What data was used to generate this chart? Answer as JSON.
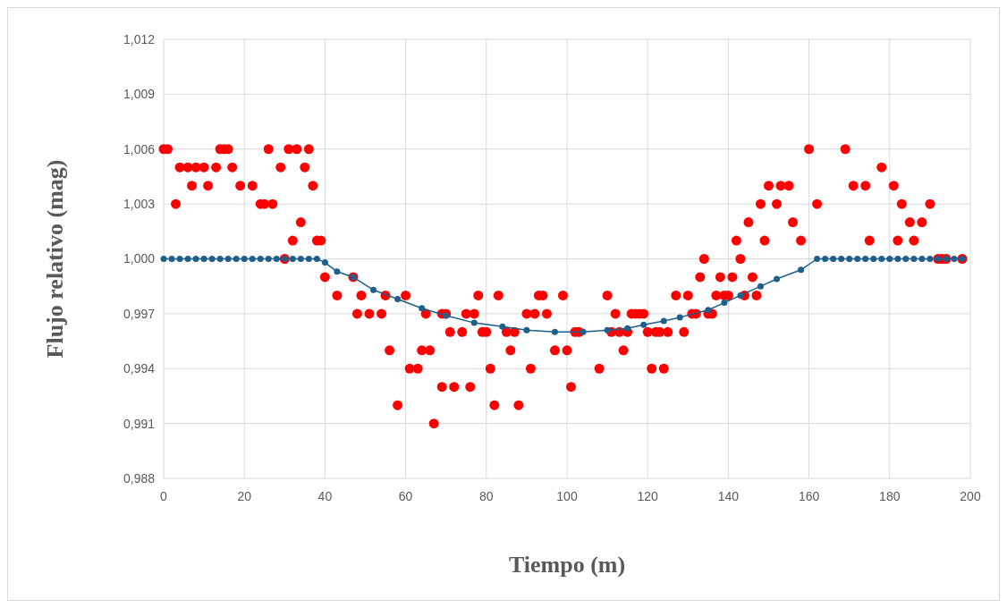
{
  "chart_data": {
    "type": "scatter",
    "xlabel": "Tiempo (m)",
    "ylabel": "Flujo relativo (mag)",
    "xlim": [
      0,
      200
    ],
    "xticks": [
      0,
      20,
      40,
      60,
      80,
      100,
      120,
      140,
      160,
      180,
      200
    ],
    "ylim": [
      0.988,
      1.012
    ],
    "yticks": [
      {
        "value": 0.988,
        "label": "0,988"
      },
      {
        "value": 0.991,
        "label": "0,991"
      },
      {
        "value": 0.994,
        "label": "0,994"
      },
      {
        "value": 0.997,
        "label": "0,997"
      },
      {
        "value": 1,
        "label": "1,000"
      },
      {
        "value": 1.003,
        "label": "1,003"
      },
      {
        "value": 1.006,
        "label": "1,006"
      },
      {
        "value": 1.009,
        "label": "1,009"
      },
      {
        "value": 1.012,
        "label": "1,012"
      }
    ],
    "grid": true,
    "marker": "circle",
    "series": [
      {
        "color": "#ff0000",
        "x": [
          0,
          1,
          3,
          4,
          6,
          7,
          8,
          10,
          11,
          13,
          14,
          15,
          16,
          17,
          19,
          22,
          24,
          25,
          26,
          27,
          29,
          30,
          31,
          32,
          33,
          34,
          35,
          36,
          37,
          38,
          39,
          40,
          43,
          47,
          48,
          49,
          51,
          54,
          55,
          56,
          58,
          60,
          61,
          63,
          64,
          65,
          66,
          67,
          69,
          69,
          70,
          71,
          72,
          74,
          75,
          76,
          77,
          78,
          79,
          80,
          81,
          82,
          83,
          85,
          86,
          87,
          88,
          90,
          91,
          92,
          93,
          94,
          95,
          97,
          99,
          100,
          101,
          102,
          103,
          108,
          110,
          111,
          112,
          113,
          114,
          115,
          116,
          117,
          118,
          119,
          120,
          121,
          122,
          123,
          124,
          125,
          127,
          129,
          130,
          131,
          132,
          133,
          134,
          135,
          136,
          137,
          138,
          139,
          140,
          141,
          142,
          143,
          144,
          145,
          146,
          147,
          148,
          149,
          150,
          152,
          153,
          155,
          156,
          158,
          160,
          162,
          169,
          171,
          174,
          175,
          178,
          181,
          182,
          183,
          185,
          186,
          188,
          190,
          192,
          193,
          194,
          198
        ],
        "values": [
          1.006,
          1.006,
          1.003,
          1.005,
          1.005,
          1.004,
          1.005,
          1.005,
          1.004,
          1.005,
          1.006,
          1.006,
          1.006,
          1.005,
          1.004,
          1.004,
          1.003,
          1.003,
          1.006,
          1.003,
          1.005,
          1.0,
          1.006,
          1.001,
          1.006,
          1.002,
          1.005,
          1.006,
          1.004,
          1.001,
          1.001,
          0.999,
          0.998,
          0.999,
          0.997,
          0.998,
          0.997,
          0.997,
          0.998,
          0.995,
          0.992,
          0.998,
          0.994,
          0.994,
          0.995,
          0.997,
          0.995,
          0.991,
          0.997,
          0.993,
          0.997,
          0.996,
          0.993,
          0.996,
          0.997,
          0.993,
          0.997,
          0.998,
          0.996,
          0.996,
          0.994,
          0.992,
          0.998,
          0.996,
          0.995,
          0.996,
          0.992,
          0.997,
          0.994,
          0.997,
          0.998,
          0.998,
          0.997,
          0.995,
          0.998,
          0.995,
          0.993,
          0.996,
          0.996,
          0.994,
          0.998,
          0.996,
          0.997,
          0.996,
          0.995,
          0.996,
          0.997,
          0.997,
          0.997,
          0.997,
          0.996,
          0.994,
          0.996,
          0.996,
          0.994,
          0.996,
          0.998,
          0.996,
          0.998,
          0.997,
          0.997,
          0.999,
          1.0,
          0.997,
          0.997,
          0.998,
          0.999,
          0.998,
          0.998,
          0.999,
          1.001,
          1.0,
          0.998,
          1.002,
          0.999,
          0.998,
          1.003,
          1.001,
          1.004,
          1.003,
          1.004,
          1.004,
          1.002,
          1.001,
          1.006,
          1.003,
          1.006,
          1.004,
          1.004,
          1.001,
          1.005,
          1.004,
          1.001,
          1.003,
          1.002,
          1.001,
          1.002,
          1.003,
          1.0,
          1.0,
          1.0,
          1.0
        ]
      },
      {
        "type": "line",
        "color": "#1f5f8b",
        "line_style": "solid",
        "x": [
          0,
          2,
          4,
          6,
          8,
          10,
          12,
          14,
          16,
          18,
          20,
          22,
          24,
          26,
          28,
          30,
          32,
          34,
          36,
          38,
          40,
          43,
          47,
          52,
          58,
          64,
          70,
          77,
          84,
          90,
          97,
          104,
          110,
          115,
          119,
          124,
          128,
          135,
          139,
          143,
          148,
          152,
          158,
          162,
          164,
          166,
          168,
          170,
          172,
          174,
          176,
          178,
          180,
          182,
          184,
          186,
          188,
          190,
          192,
          194,
          196,
          198
        ],
        "values": [
          1,
          1,
          1,
          1,
          1,
          1,
          1,
          1,
          1,
          1,
          1,
          1,
          1,
          1,
          1,
          1,
          1,
          1,
          1,
          1,
          0.9998,
          0.9993,
          0.999,
          0.9983,
          0.9978,
          0.9973,
          0.9969,
          0.9965,
          0.9963,
          0.9961,
          0.996,
          0.996,
          0.9961,
          0.9962,
          0.9964,
          0.9966,
          0.9968,
          0.9972,
          0.9976,
          0.998,
          0.9985,
          0.9989,
          0.9994,
          1,
          1,
          1,
          1,
          1,
          1,
          1,
          1,
          1,
          1,
          1,
          1,
          1,
          1,
          1,
          1,
          1,
          1,
          1
        ]
      }
    ]
  }
}
